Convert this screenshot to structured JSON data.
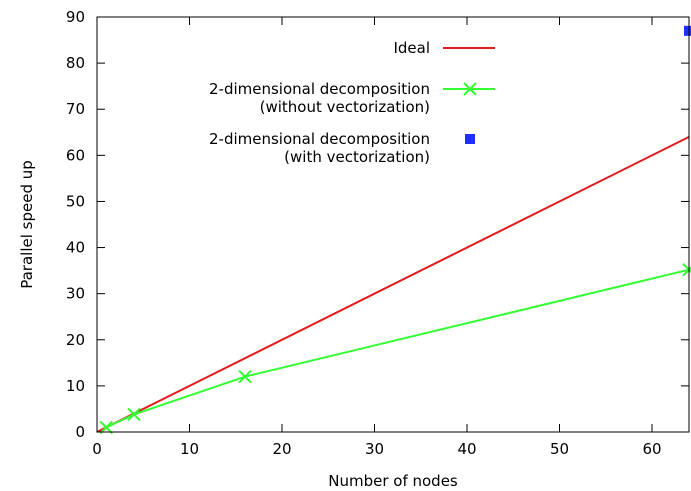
{
  "chart_data": {
    "type": "line",
    "xlabel": "Number of nodes",
    "ylabel": "Parallel speed up",
    "xlim": [
      0,
      64
    ],
    "ylim": [
      0,
      90
    ],
    "xticks": [
      0,
      10,
      20,
      30,
      40,
      50,
      60
    ],
    "yticks": [
      0,
      10,
      20,
      30,
      40,
      50,
      60,
      70,
      80,
      90
    ],
    "legend_position": "top-right",
    "grid": false,
    "series": [
      {
        "name": "Ideal",
        "style": "line",
        "color": "#e41a1c",
        "x": [
          0,
          64
        ],
        "y": [
          0,
          64
        ]
      },
      {
        "name": [
          "2-dimensional decomposition",
          "(without vectorization)"
        ],
        "style": "linespoints",
        "marker": "x",
        "color": "#33ff33",
        "x": [
          1,
          4,
          16,
          64
        ],
        "y": [
          1,
          3.8,
          12,
          35.2
        ]
      },
      {
        "name": [
          "2-dimensional decomposition",
          "(with vectorization)"
        ],
        "style": "points",
        "marker": "square",
        "color": "#1f2fff",
        "x": [
          64
        ],
        "y": [
          87
        ]
      }
    ]
  }
}
